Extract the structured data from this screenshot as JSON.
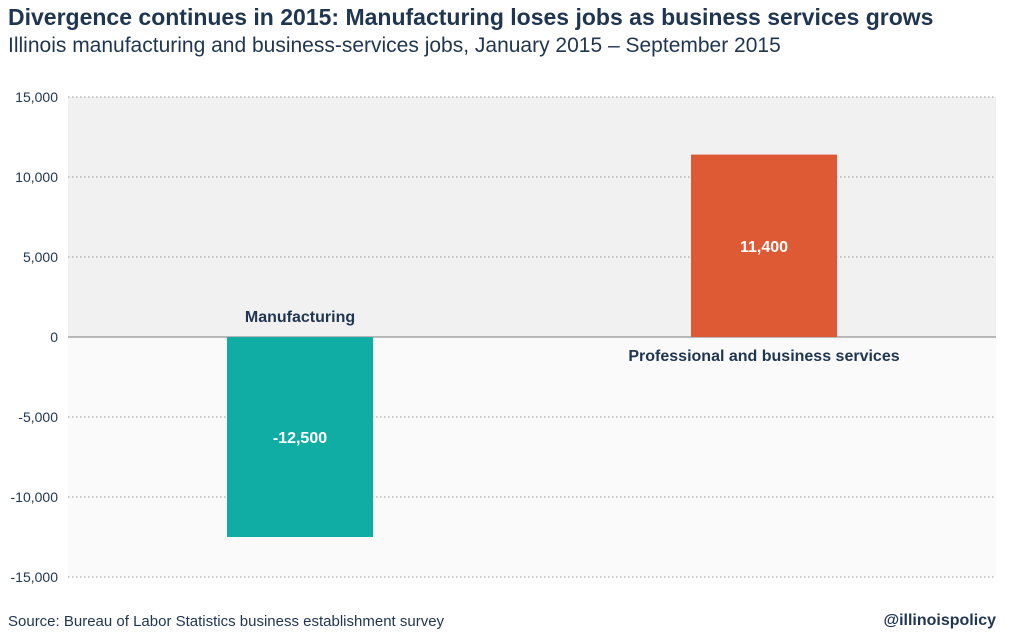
{
  "header": {
    "title": "Divergence continues in 2015: Manufacturing loses jobs as business services grows",
    "subtitle": "Illinois manufacturing and business-services jobs, January 2015 – September 2015"
  },
  "footer": {
    "source": "Source: Bureau of Labor Statistics business establishment survey",
    "handle": "@illinoispolicy"
  },
  "colors": {
    "text": "#1f3550",
    "positive_band": "#f1f1f1",
    "negative_band": "#fafafa",
    "manufacturing": "#10ada5",
    "business_services": "#dd5a35",
    "grid": "#9a9a9a"
  },
  "chart_data": {
    "type": "bar",
    "title": "Divergence continues in 2015: Manufacturing loses jobs as business services grows",
    "subtitle": "Illinois manufacturing and business-services jobs, January 2015 – September 2015",
    "categories": [
      "Manufacturing",
      "Professional and business services"
    ],
    "values": [
      -12500,
      11400
    ],
    "data_labels": [
      "-12,500",
      "11,400"
    ],
    "ylim": [
      -15000,
      15000
    ],
    "yticks": [
      15000,
      10000,
      5000,
      0,
      -5000,
      -10000,
      -15000
    ],
    "ytick_labels": [
      "15,000",
      "10,000",
      "5,000",
      "0",
      "-5,000",
      "-10,000",
      "-15,000"
    ],
    "grid": true,
    "grid_style": "dotted",
    "legend": "none",
    "xlabel": "",
    "ylabel": ""
  }
}
